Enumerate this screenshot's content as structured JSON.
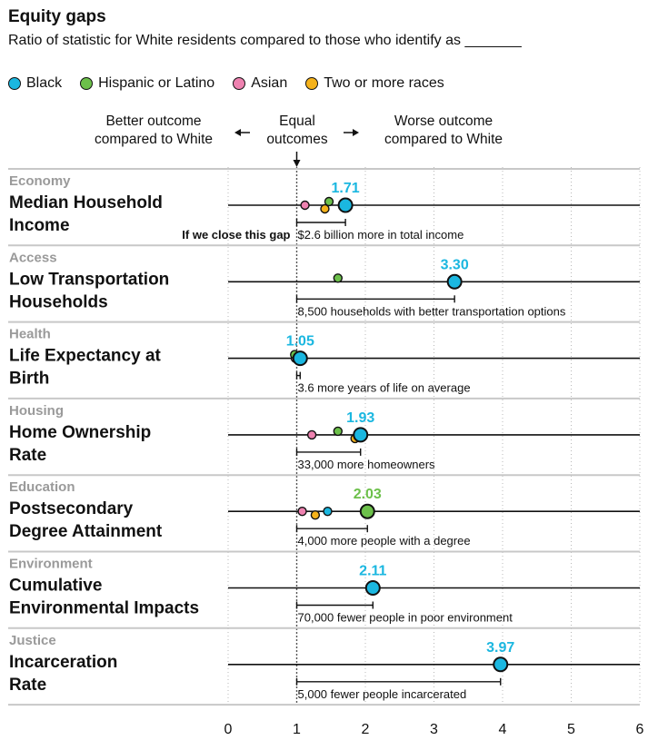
{
  "title": "Equity gaps",
  "subtitle": "Ratio of statistic for White residents compared to those who identify as _______",
  "legend": [
    {
      "name": "Black",
      "color": "#1bb7e0"
    },
    {
      "name": "Hispanic or Latino",
      "color": "#6cc04a"
    },
    {
      "name": "Asian",
      "color": "#ee82b0"
    },
    {
      "name": "Two or more races",
      "color": "#f5b21b"
    }
  ],
  "header": {
    "better": "Better outcome compared to White",
    "equal": "Equal outcomes",
    "worse": "Worse outcome compared to White"
  },
  "close_gap_label": "If we close this gap",
  "chart_data": {
    "type": "dot",
    "xlim": [
      0,
      6
    ],
    "ticks": [
      0,
      1,
      2,
      3,
      4,
      5,
      6
    ],
    "reference_line": 1,
    "rows": [
      {
        "category": "Economy",
        "label": [
          "Median Household",
          "Income"
        ],
        "points": {
          "Black": 1.71,
          "Hispanic or Latino": 1.47,
          "Asian": 1.12,
          "Two or more races": 1.41
        },
        "highlight": {
          "value": 1.71,
          "label": "1.71",
          "series": "Black"
        },
        "impact": "$2.6 billion more in total income"
      },
      {
        "category": "Access",
        "label": [
          "Low Transportation",
          "Households"
        ],
        "points": {
          "Black": 3.3,
          "Hispanic or Latino": 1.6
        },
        "highlight": {
          "value": 3.3,
          "label": "3.30",
          "series": "Black"
        },
        "impact": "8,500 households with better transportation options"
      },
      {
        "category": "Health",
        "label": [
          "Life Expectancy at",
          "Birth"
        ],
        "points": {
          "Black": 1.05,
          "Hispanic or Latino": 0.97,
          "Asian": 0.98
        },
        "highlight": {
          "value": 1.05,
          "label": "1.05",
          "series": "Black"
        },
        "impact": "3.6 more years of life on average"
      },
      {
        "category": "Housing",
        "label": [
          "Home Ownership",
          "Rate"
        ],
        "points": {
          "Black": 1.93,
          "Hispanic or Latino": 1.6,
          "Asian": 1.22,
          "Two or more races": 1.85
        },
        "highlight": {
          "value": 1.93,
          "label": "1.93",
          "series": "Black"
        },
        "impact": "33,000 more homeowners"
      },
      {
        "category": "Education",
        "label": [
          "Postsecondary",
          "Degree Attainment"
        ],
        "points": {
          "Hispanic or Latino": 2.03,
          "Black": 1.45,
          "Asian": 1.08,
          "Two or more races": 1.27
        },
        "highlight": {
          "value": 2.03,
          "label": "2.03",
          "series": "Hispanic or Latino"
        },
        "impact": "4,000 more people with a degree"
      },
      {
        "category": "Environment",
        "label": [
          "Cumulative",
          "Environmental Impacts"
        ],
        "points": {
          "Black": 2.11
        },
        "highlight": {
          "value": 2.11,
          "label": "2.11",
          "series": "Black"
        },
        "impact": "70,000 fewer people in poor environment"
      },
      {
        "category": "Justice",
        "label": [
          "Incarceration",
          "Rate"
        ],
        "points": {
          "Black": 3.97
        },
        "highlight": {
          "value": 3.97,
          "label": "3.97",
          "series": "Black"
        },
        "impact": "5,000 fewer people incarcerated"
      }
    ]
  }
}
